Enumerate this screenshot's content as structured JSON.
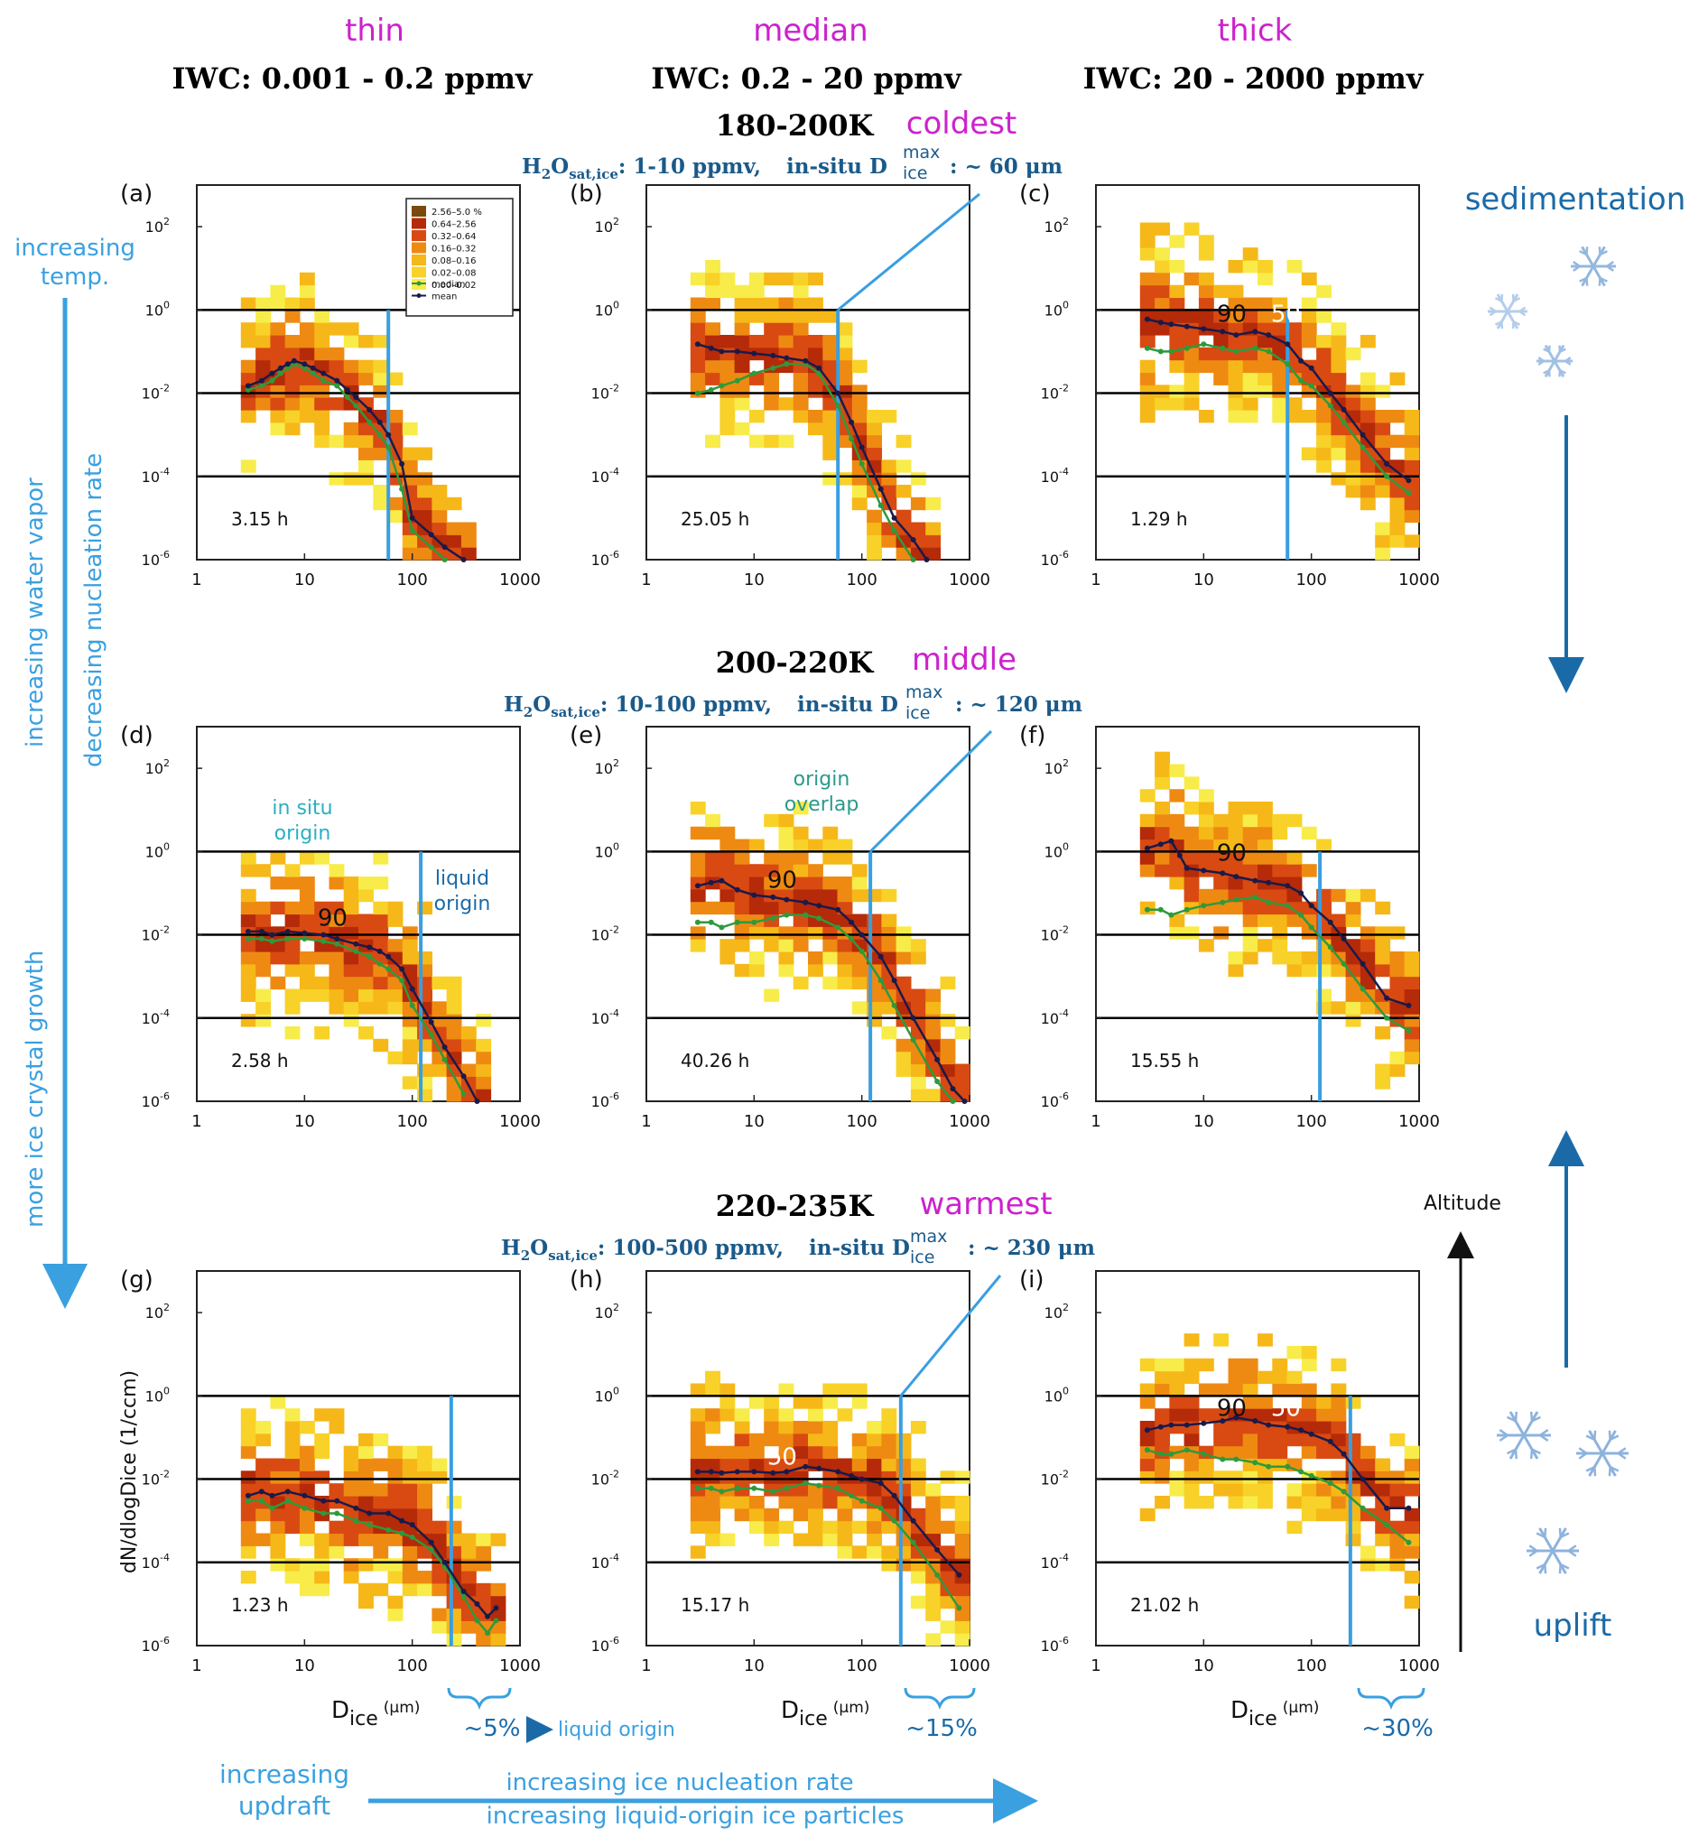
{
  "columns": [
    {
      "category": "thin",
      "iwc": "IWC:  0.001 - 0.2 ppmv"
    },
    {
      "category": "median",
      "iwc": "IWC:  0.2 - 20 ppmv"
    },
    {
      "category": "thick",
      "iwc": "IWC:  20 - 2000 ppmv"
    }
  ],
  "rows": [
    {
      "temp": "180-200K",
      "tag": "coldest",
      "h2o": "1-10 ppmv,",
      "dmax_value": ": ~ 60 μm"
    },
    {
      "temp": "200-220K",
      "tag": "middle",
      "h2o": "10-100 ppmv,",
      "dmax_value": ": ~ 120 μm"
    },
    {
      "temp": "220-235K",
      "tag": "warmest",
      "h2o": "100-500 ppmv,",
      "dmax_value": ": ~ 230 μm"
    }
  ],
  "h2o_label": "H",
  "h2o_sub2": "2",
  "h2o_O": "O",
  "h2o_sub": "sat,ice",
  "h2o_colon": ":",
  "insitu_label": "in-situ D",
  "dmax_sup": "max",
  "dmax_sub": "ice",
  "legend": {
    "entries": [
      "2.56–5.0 %",
      "0.64–2.56",
      "0.32–0.64",
      "0.16–0.32",
      "0.08–0.16",
      "0.02–0.08",
      "0.00–0.02"
    ],
    "colors": [
      "#7a4a0c",
      "#b52a08",
      "#d84a12",
      "#ee8a12",
      "#f6b818",
      "#f8d228",
      "#f8ec4a"
    ],
    "median": "median",
    "mean": "mean",
    "median_color": "#2e9a3a",
    "mean_color": "#1a1a4a"
  },
  "annotations": {
    "in_situ_origin_1": "in situ",
    "in_situ_origin_2": "origin",
    "liquid_origin_1": "liquid",
    "liquid_origin_2": "origin",
    "origin_overlap_1": "origin",
    "origin_overlap_2": "overlap",
    "pct_g": "~5%",
    "liquid_origin_arrow": "liquid origin",
    "pct_h": "~15%",
    "pct_i": "~30%",
    "sedimentation": "sedimentation",
    "uplift": "uplift",
    "altitude": "Altitude",
    "increasing_temp_1": "increasing",
    "increasing_temp_2": "temp.",
    "increasing_water_vapor": "increasing water vapor",
    "decreasing_nucleation": "decreasing nucleation rate",
    "more_growth": "more ice crystal growth",
    "increasing_updraft_1": "increasing",
    "increasing_updraft_2": "updraft",
    "increasing_nucleation": "increasing ice nucleation rate",
    "increasing_liquid": "increasing liquid-origin ice particles"
  },
  "colors": {
    "magenta": "#cc22cc",
    "blue_title": "#1a5a8a",
    "light_blue": "#3aa0e0",
    "cyan": "#2ab0c0",
    "teal": "#2a9a8a",
    "snow": "#7aa6d8"
  },
  "chart_data": [
    {
      "panel": "(a)",
      "type": "heatmap",
      "hours": "3.15 h",
      "xlabel": "",
      "ylabel": "",
      "x_scale": "log",
      "y_scale": "log",
      "xlim": [
        1,
        1000
      ],
      "ylim": [
        1e-06,
        1000.0
      ],
      "xticks": [
        "1",
        "10",
        "100",
        "1000"
      ],
      "dmax_line": 60,
      "hlines": [
        0.0001,
        0.01,
        1
      ],
      "mean": {
        "x": [
          3,
          4,
          5,
          6,
          7,
          8,
          10,
          12,
          15,
          20,
          25,
          30,
          40,
          50,
          60,
          80,
          100,
          150,
          200,
          300
        ],
        "y": [
          0.015,
          0.02,
          0.03,
          0.04,
          0.05,
          0.06,
          0.05,
          0.04,
          0.03,
          0.02,
          0.012,
          0.008,
          0.004,
          0.002,
          0.001,
          0.0002,
          1e-05,
          4e-06,
          2e-06,
          1e-06
        ]
      },
      "median": {
        "x": [
          3,
          4,
          5,
          6,
          7,
          8,
          10,
          12,
          15,
          20,
          25,
          30,
          40,
          50,
          60,
          80,
          100,
          150,
          200
        ],
        "y": [
          0.012,
          0.015,
          0.02,
          0.03,
          0.04,
          0.05,
          0.04,
          0.03,
          0.02,
          0.015,
          0.008,
          0.005,
          0.002,
          0.001,
          0.0005,
          5e-05,
          5e-06,
          2e-06,
          1e-06
        ]
      }
    },
    {
      "panel": "(b)",
      "type": "heatmap",
      "hours": "25.05 h",
      "xlabel": "",
      "ylabel": "",
      "x_scale": "log",
      "y_scale": "log",
      "xlim": [
        1,
        1000
      ],
      "ylim": [
        1e-06,
        1000.0
      ],
      "xticks": [
        "1",
        "10",
        "100",
        "1000"
      ],
      "dmax_line": 60,
      "hlines": [
        0.0001,
        0.01,
        1
      ],
      "mean": {
        "x": [
          3,
          4,
          5,
          7,
          10,
          15,
          20,
          30,
          40,
          60,
          80,
          100,
          150,
          200,
          300,
          400
        ],
        "y": [
          0.15,
          0.12,
          0.1,
          0.1,
          0.09,
          0.08,
          0.07,
          0.06,
          0.04,
          0.01,
          0.002,
          0.0005,
          5e-05,
          1e-05,
          3e-06,
          1e-06
        ]
      },
      "median": {
        "x": [
          3,
          4,
          5,
          7,
          10,
          15,
          20,
          30,
          40,
          60,
          80,
          100,
          150,
          200,
          300
        ],
        "y": [
          0.01,
          0.012,
          0.015,
          0.02,
          0.03,
          0.04,
          0.05,
          0.05,
          0.03,
          0.005,
          0.0008,
          0.0002,
          2e-05,
          5e-06,
          1e-06
        ]
      }
    },
    {
      "panel": "(c)",
      "type": "heatmap",
      "hours": "1.29 h",
      "xlabel": "",
      "ylabel": "",
      "x_scale": "log",
      "y_scale": "log",
      "xlim": [
        1,
        1000
      ],
      "ylim": [
        1e-06,
        1000.0
      ],
      "xticks": [
        "1",
        "10",
        "100",
        "1000"
      ],
      "dmax_line": 60,
      "hlines": [
        0.0001,
        0.01,
        1
      ],
      "contour_labels": [
        "90",
        "50"
      ],
      "mean": {
        "x": [
          3,
          4,
          5,
          7,
          10,
          15,
          20,
          30,
          40,
          60,
          80,
          100,
          150,
          200,
          300,
          500,
          800
        ],
        "y": [
          0.6,
          0.5,
          0.45,
          0.4,
          0.35,
          0.3,
          0.25,
          0.3,
          0.25,
          0.15,
          0.06,
          0.04,
          0.01,
          0.004,
          0.001,
          0.0002,
          8e-05
        ]
      },
      "median": {
        "x": [
          3,
          4,
          5,
          7,
          10,
          15,
          20,
          30,
          40,
          60,
          80,
          100,
          150,
          200,
          300,
          500,
          800
        ],
        "y": [
          0.12,
          0.1,
          0.1,
          0.12,
          0.15,
          0.12,
          0.1,
          0.12,
          0.1,
          0.05,
          0.02,
          0.015,
          0.005,
          0.002,
          0.0005,
          0.0001,
          4e-05
        ]
      }
    },
    {
      "panel": "(d)",
      "type": "heatmap",
      "hours": "2.58 h",
      "xlabel": "",
      "ylabel": "",
      "x_scale": "log",
      "y_scale": "log",
      "xlim": [
        1,
        1000
      ],
      "ylim": [
        1e-06,
        1000.0
      ],
      "xticks": [
        "1",
        "10",
        "100",
        "1000"
      ],
      "dmax_line": 120,
      "hlines": [
        0.0001,
        0.01,
        1
      ],
      "contour_labels": [
        "90"
      ],
      "mean": {
        "x": [
          3,
          4,
          5,
          7,
          10,
          15,
          20,
          30,
          40,
          50,
          60,
          80,
          100,
          150,
          200,
          300,
          400
        ],
        "y": [
          0.012,
          0.012,
          0.01,
          0.012,
          0.011,
          0.01,
          0.008,
          0.006,
          0.005,
          0.004,
          0.003,
          0.0015,
          0.0005,
          8e-05,
          2e-05,
          4e-06,
          1e-06
        ]
      },
      "median": {
        "x": [
          3,
          4,
          5,
          7,
          10,
          15,
          20,
          30,
          40,
          50,
          60,
          80,
          100,
          150,
          200,
          300
        ],
        "y": [
          0.008,
          0.008,
          0.007,
          0.008,
          0.008,
          0.007,
          0.006,
          0.004,
          0.003,
          0.002,
          0.0015,
          0.0008,
          0.0002,
          4e-05,
          1e-05,
          1.5e-06
        ]
      }
    },
    {
      "panel": "(e)",
      "type": "heatmap",
      "hours": "40.26 h",
      "xlabel": "",
      "ylabel": "",
      "x_scale": "log",
      "y_scale": "log",
      "xlim": [
        1,
        1000
      ],
      "ylim": [
        1e-06,
        1000.0
      ],
      "xticks": [
        "1",
        "10",
        "100",
        "1000"
      ],
      "dmax_line": 120,
      "hlines": [
        0.0001,
        0.01,
        1
      ],
      "contour_labels": [
        "90"
      ],
      "mean": {
        "x": [
          3,
          4,
          5,
          7,
          10,
          15,
          20,
          30,
          40,
          60,
          80,
          100,
          150,
          200,
          300,
          500,
          700,
          900
        ],
        "y": [
          0.15,
          0.18,
          0.2,
          0.12,
          0.09,
          0.08,
          0.07,
          0.06,
          0.05,
          0.04,
          0.02,
          0.01,
          0.003,
          0.0008,
          0.0001,
          1e-05,
          2e-06,
          1e-06
        ]
      },
      "median": {
        "x": [
          3,
          4,
          5,
          7,
          10,
          15,
          20,
          30,
          40,
          60,
          80,
          100,
          150,
          200,
          300,
          500,
          700
        ],
        "y": [
          0.02,
          0.02,
          0.015,
          0.02,
          0.02,
          0.025,
          0.03,
          0.03,
          0.025,
          0.015,
          0.008,
          0.004,
          0.0008,
          0.0002,
          3e-05,
          3e-06,
          1e-06
        ]
      }
    },
    {
      "panel": "(f)",
      "type": "heatmap",
      "hours": "15.55 h",
      "xlabel": "",
      "ylabel": "",
      "x_scale": "log",
      "y_scale": "log",
      "xlim": [
        1,
        1000
      ],
      "ylim": [
        1e-06,
        1000.0
      ],
      "xticks": [
        "1",
        "10",
        "100",
        "1000"
      ],
      "dmax_line": 120,
      "hlines": [
        0.0001,
        0.01,
        1
      ],
      "contour_labels": [
        "90"
      ],
      "mean": {
        "x": [
          3,
          4,
          5,
          6,
          7,
          10,
          15,
          20,
          30,
          40,
          60,
          80,
          100,
          150,
          200,
          300,
          500,
          800
        ],
        "y": [
          1.2,
          1.5,
          1.8,
          0.8,
          0.4,
          0.35,
          0.3,
          0.25,
          0.2,
          0.18,
          0.15,
          0.1,
          0.05,
          0.02,
          0.008,
          0.002,
          0.0003,
          0.0002
        ]
      },
      "median": {
        "x": [
          3,
          4,
          5,
          7,
          10,
          15,
          20,
          30,
          40,
          60,
          80,
          100,
          150,
          200,
          300,
          500,
          800
        ],
        "y": [
          0.04,
          0.04,
          0.03,
          0.04,
          0.05,
          0.06,
          0.07,
          0.08,
          0.06,
          0.05,
          0.03,
          0.015,
          0.005,
          0.002,
          0.0005,
          0.0001,
          5e-05
        ]
      }
    },
    {
      "panel": "(g)",
      "type": "heatmap",
      "hours": "1.23 h",
      "xlabel": "D_ice (μm)",
      "ylabel": "dN/dlogDice (1/ccm)",
      "x_scale": "log",
      "y_scale": "log",
      "xlim": [
        1,
        1000
      ],
      "ylim": [
        1e-06,
        1000.0
      ],
      "xticks": [
        "1",
        "10",
        "100",
        "1000"
      ],
      "dmax_line": 230,
      "hlines": [
        0.0001,
        0.01,
        1
      ],
      "mean": {
        "x": [
          3,
          4,
          5,
          7,
          10,
          15,
          20,
          30,
          40,
          60,
          80,
          100,
          150,
          200,
          300,
          400,
          500,
          600
        ],
        "y": [
          0.004,
          0.005,
          0.004,
          0.005,
          0.004,
          0.003,
          0.003,
          0.002,
          0.0015,
          0.0015,
          0.001,
          0.0008,
          0.0003,
          0.0001,
          2e-05,
          1e-05,
          5e-06,
          8e-06
        ]
      },
      "median": {
        "x": [
          3,
          4,
          5,
          7,
          10,
          15,
          20,
          30,
          40,
          60,
          80,
          100,
          150,
          200,
          300,
          400,
          500,
          600
        ],
        "y": [
          0.003,
          0.003,
          0.002,
          0.003,
          0.002,
          0.0015,
          0.0015,
          0.001,
          0.0008,
          0.0006,
          0.0005,
          0.0004,
          0.0002,
          8e-05,
          1.5e-05,
          4e-06,
          2e-06,
          4e-06
        ]
      }
    },
    {
      "panel": "(h)",
      "type": "heatmap",
      "hours": "15.17 h",
      "xlabel": "D_ice (μm)",
      "ylabel": "",
      "x_scale": "log",
      "y_scale": "log",
      "xlim": [
        1,
        1000
      ],
      "ylim": [
        1e-06,
        1000.0
      ],
      "xticks": [
        "1",
        "10",
        "100",
        "1000"
      ],
      "dmax_line": 230,
      "hlines": [
        0.0001,
        0.01,
        1
      ],
      "contour_labels": [
        "50"
      ],
      "mean": {
        "x": [
          3,
          4,
          5,
          7,
          10,
          15,
          20,
          30,
          40,
          60,
          80,
          100,
          150,
          200,
          300,
          500,
          800
        ],
        "y": [
          0.015,
          0.015,
          0.014,
          0.015,
          0.015,
          0.014,
          0.015,
          0.02,
          0.018,
          0.015,
          0.012,
          0.01,
          0.008,
          0.004,
          0.001,
          0.0002,
          5e-05
        ]
      },
      "median": {
        "x": [
          3,
          4,
          5,
          7,
          10,
          15,
          20,
          30,
          40,
          60,
          80,
          100,
          150,
          200,
          300,
          500,
          800
        ],
        "y": [
          0.006,
          0.006,
          0.005,
          0.006,
          0.006,
          0.005,
          0.006,
          0.008,
          0.007,
          0.006,
          0.004,
          0.003,
          0.002,
          0.001,
          0.0003,
          5e-05,
          8e-06
        ]
      }
    },
    {
      "panel": "(i)",
      "type": "heatmap",
      "hours": "21.02 h",
      "xlabel": "D_ice (μm)",
      "ylabel": "",
      "x_scale": "log",
      "y_scale": "log",
      "xlim": [
        1,
        1000
      ],
      "ylim": [
        1e-06,
        1000.0
      ],
      "xticks": [
        "1",
        "10",
        "100",
        "1000"
      ],
      "dmax_line": 230,
      "hlines": [
        0.0001,
        0.01,
        1
      ],
      "contour_labels": [
        "90",
        "50"
      ],
      "mean": {
        "x": [
          3,
          4,
          5,
          7,
          10,
          15,
          20,
          30,
          40,
          60,
          80,
          100,
          150,
          200,
          300,
          500,
          800
        ],
        "y": [
          0.15,
          0.18,
          0.2,
          0.2,
          0.22,
          0.25,
          0.3,
          0.25,
          0.2,
          0.18,
          0.15,
          0.12,
          0.08,
          0.04,
          0.01,
          0.002,
          0.002
        ]
      },
      "median": {
        "x": [
          3,
          4,
          5,
          7,
          10,
          15,
          20,
          30,
          40,
          60,
          80,
          100,
          150,
          200,
          300,
          500,
          800
        ],
        "y": [
          0.05,
          0.04,
          0.04,
          0.05,
          0.04,
          0.03,
          0.03,
          0.025,
          0.02,
          0.02,
          0.015,
          0.012,
          0.008,
          0.005,
          0.002,
          0.0008,
          0.0003
        ]
      }
    }
  ]
}
